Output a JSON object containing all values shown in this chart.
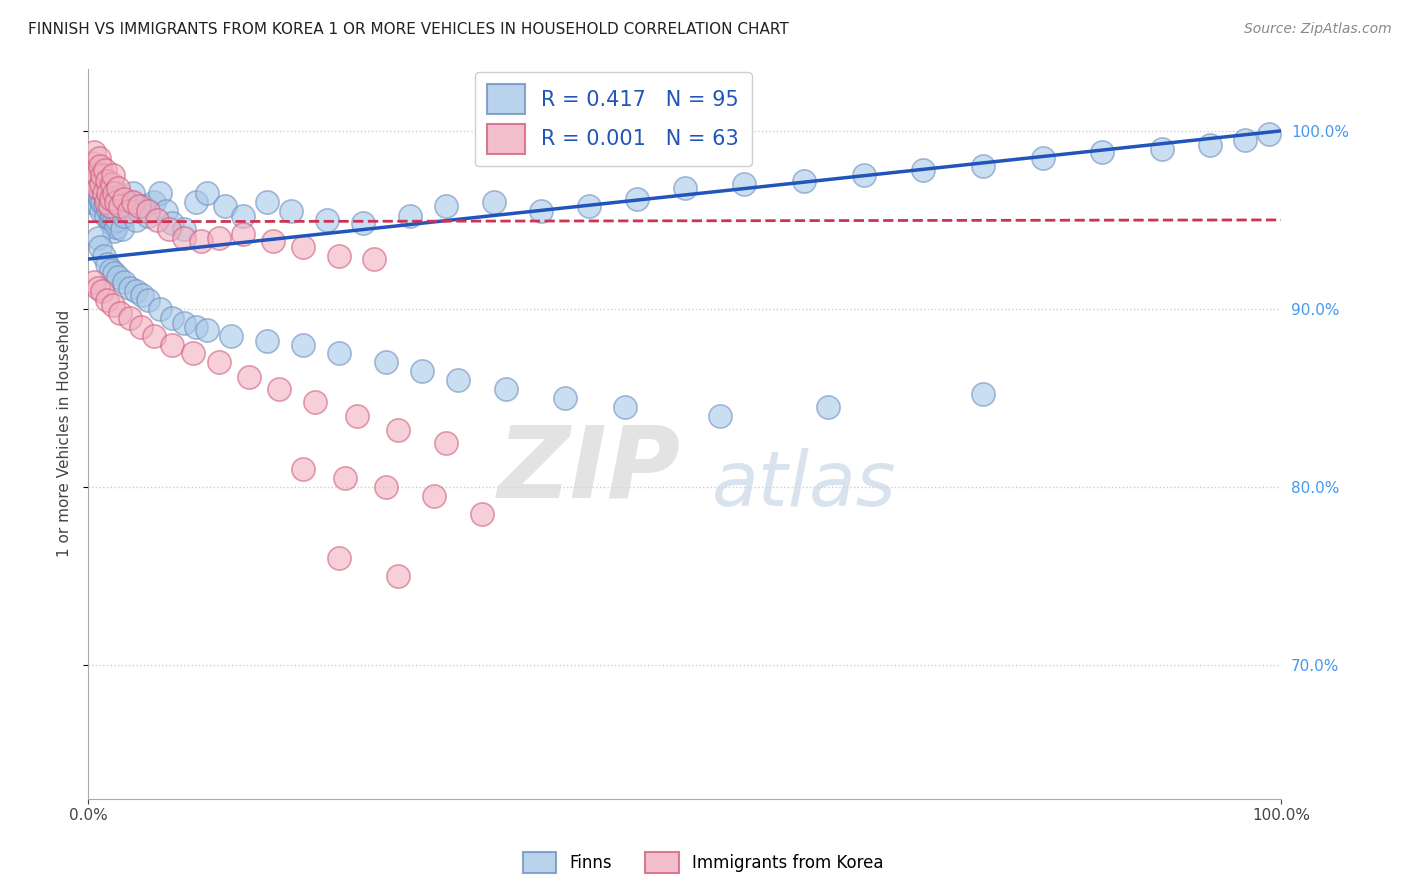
{
  "title": "FINNISH VS IMMIGRANTS FROM KOREA 1 OR MORE VEHICLES IN HOUSEHOLD CORRELATION CHART",
  "source": "Source: ZipAtlas.com",
  "ylabel": "1 or more Vehicles in Household",
  "xlim": [
    0.0,
    1.0
  ],
  "ylim": [
    0.625,
    1.035
  ],
  "yticks": [
    0.7,
    0.8,
    0.9,
    1.0
  ],
  "legend_labels": [
    "Finns",
    "Immigrants from Korea"
  ],
  "finn_color": "#a8c8e8",
  "korea_color": "#f0b0c0",
  "finn_edge_color": "#7090c0",
  "korea_edge_color": "#d06080",
  "finn_R": 0.417,
  "finn_N": 95,
  "korea_R": 0.001,
  "korea_N": 63,
  "finn_slope": 0.072,
  "finn_intercept": 0.928,
  "korea_slope": 0.001,
  "korea_intercept": 0.949,
  "trendline_finn_color": "#2255bb",
  "trendline_korea_color": "#cc3355",
  "background_color": "#ffffff",
  "grid_color": "#cccccc",
  "watermark_zip": "ZIP",
  "watermark_atlas": "atlas",
  "finn_scatter_x": [
    0.003,
    0.004,
    0.005,
    0.006,
    0.007,
    0.008,
    0.009,
    0.01,
    0.011,
    0.012,
    0.013,
    0.014,
    0.015,
    0.016,
    0.017,
    0.018,
    0.019,
    0.02,
    0.021,
    0.022,
    0.023,
    0.024,
    0.025,
    0.027,
    0.028,
    0.03,
    0.032,
    0.034,
    0.036,
    0.038,
    0.04,
    0.043,
    0.046,
    0.05,
    0.055,
    0.06,
    0.065,
    0.07,
    0.08,
    0.09,
    0.1,
    0.115,
    0.13,
    0.15,
    0.17,
    0.2,
    0.23,
    0.27,
    0.3,
    0.34,
    0.38,
    0.42,
    0.46,
    0.5,
    0.55,
    0.6,
    0.65,
    0.7,
    0.75,
    0.8,
    0.85,
    0.9,
    0.94,
    0.97,
    0.99,
    0.008,
    0.01,
    0.013,
    0.016,
    0.019,
    0.022,
    0.025,
    0.03,
    0.035,
    0.04,
    0.045,
    0.05,
    0.06,
    0.07,
    0.08,
    0.09,
    0.1,
    0.12,
    0.15,
    0.18,
    0.21,
    0.25,
    0.28,
    0.31,
    0.35,
    0.4,
    0.45,
    0.53,
    0.62,
    0.75
  ],
  "finn_scatter_y": [
    0.96,
    0.972,
    0.975,
    0.968,
    0.97,
    0.965,
    0.958,
    0.962,
    0.955,
    0.96,
    0.965,
    0.958,
    0.952,
    0.96,
    0.956,
    0.95,
    0.948,
    0.952,
    0.948,
    0.944,
    0.946,
    0.95,
    0.955,
    0.958,
    0.945,
    0.952,
    0.955,
    0.958,
    0.96,
    0.965,
    0.95,
    0.955,
    0.958,
    0.952,
    0.96,
    0.965,
    0.955,
    0.948,
    0.945,
    0.96,
    0.965,
    0.958,
    0.952,
    0.96,
    0.955,
    0.95,
    0.948,
    0.952,
    0.958,
    0.96,
    0.955,
    0.958,
    0.962,
    0.968,
    0.97,
    0.972,
    0.975,
    0.978,
    0.98,
    0.985,
    0.988,
    0.99,
    0.992,
    0.995,
    0.998,
    0.94,
    0.935,
    0.93,
    0.925,
    0.922,
    0.92,
    0.918,
    0.915,
    0.912,
    0.91,
    0.908,
    0.905,
    0.9,
    0.895,
    0.892,
    0.89,
    0.888,
    0.885,
    0.882,
    0.88,
    0.875,
    0.87,
    0.865,
    0.86,
    0.855,
    0.85,
    0.845,
    0.84,
    0.845,
    0.852
  ],
  "korea_scatter_x": [
    0.003,
    0.004,
    0.005,
    0.006,
    0.007,
    0.008,
    0.009,
    0.01,
    0.011,
    0.012,
    0.013,
    0.014,
    0.015,
    0.016,
    0.017,
    0.018,
    0.019,
    0.02,
    0.021,
    0.022,
    0.023,
    0.025,
    0.027,
    0.03,
    0.034,
    0.038,
    0.043,
    0.05,
    0.058,
    0.068,
    0.08,
    0.095,
    0.11,
    0.13,
    0.155,
    0.18,
    0.21,
    0.24,
    0.005,
    0.008,
    0.012,
    0.016,
    0.021,
    0.027,
    0.035,
    0.044,
    0.055,
    0.07,
    0.088,
    0.11,
    0.135,
    0.16,
    0.19,
    0.225,
    0.26,
    0.3,
    0.18,
    0.215,
    0.25,
    0.29,
    0.33,
    0.21,
    0.26
  ],
  "korea_scatter_y": [
    0.978,
    0.982,
    0.988,
    0.972,
    0.975,
    0.968,
    0.985,
    0.98,
    0.97,
    0.975,
    0.965,
    0.978,
    0.96,
    0.972,
    0.965,
    0.958,
    0.962,
    0.97,
    0.975,
    0.965,
    0.96,
    0.968,
    0.958,
    0.962,
    0.955,
    0.96,
    0.958,
    0.955,
    0.95,
    0.945,
    0.94,
    0.938,
    0.94,
    0.942,
    0.938,
    0.935,
    0.93,
    0.928,
    0.915,
    0.912,
    0.91,
    0.905,
    0.902,
    0.898,
    0.895,
    0.89,
    0.885,
    0.88,
    0.875,
    0.87,
    0.862,
    0.855,
    0.848,
    0.84,
    0.832,
    0.825,
    0.81,
    0.805,
    0.8,
    0.795,
    0.785,
    0.76,
    0.75
  ]
}
